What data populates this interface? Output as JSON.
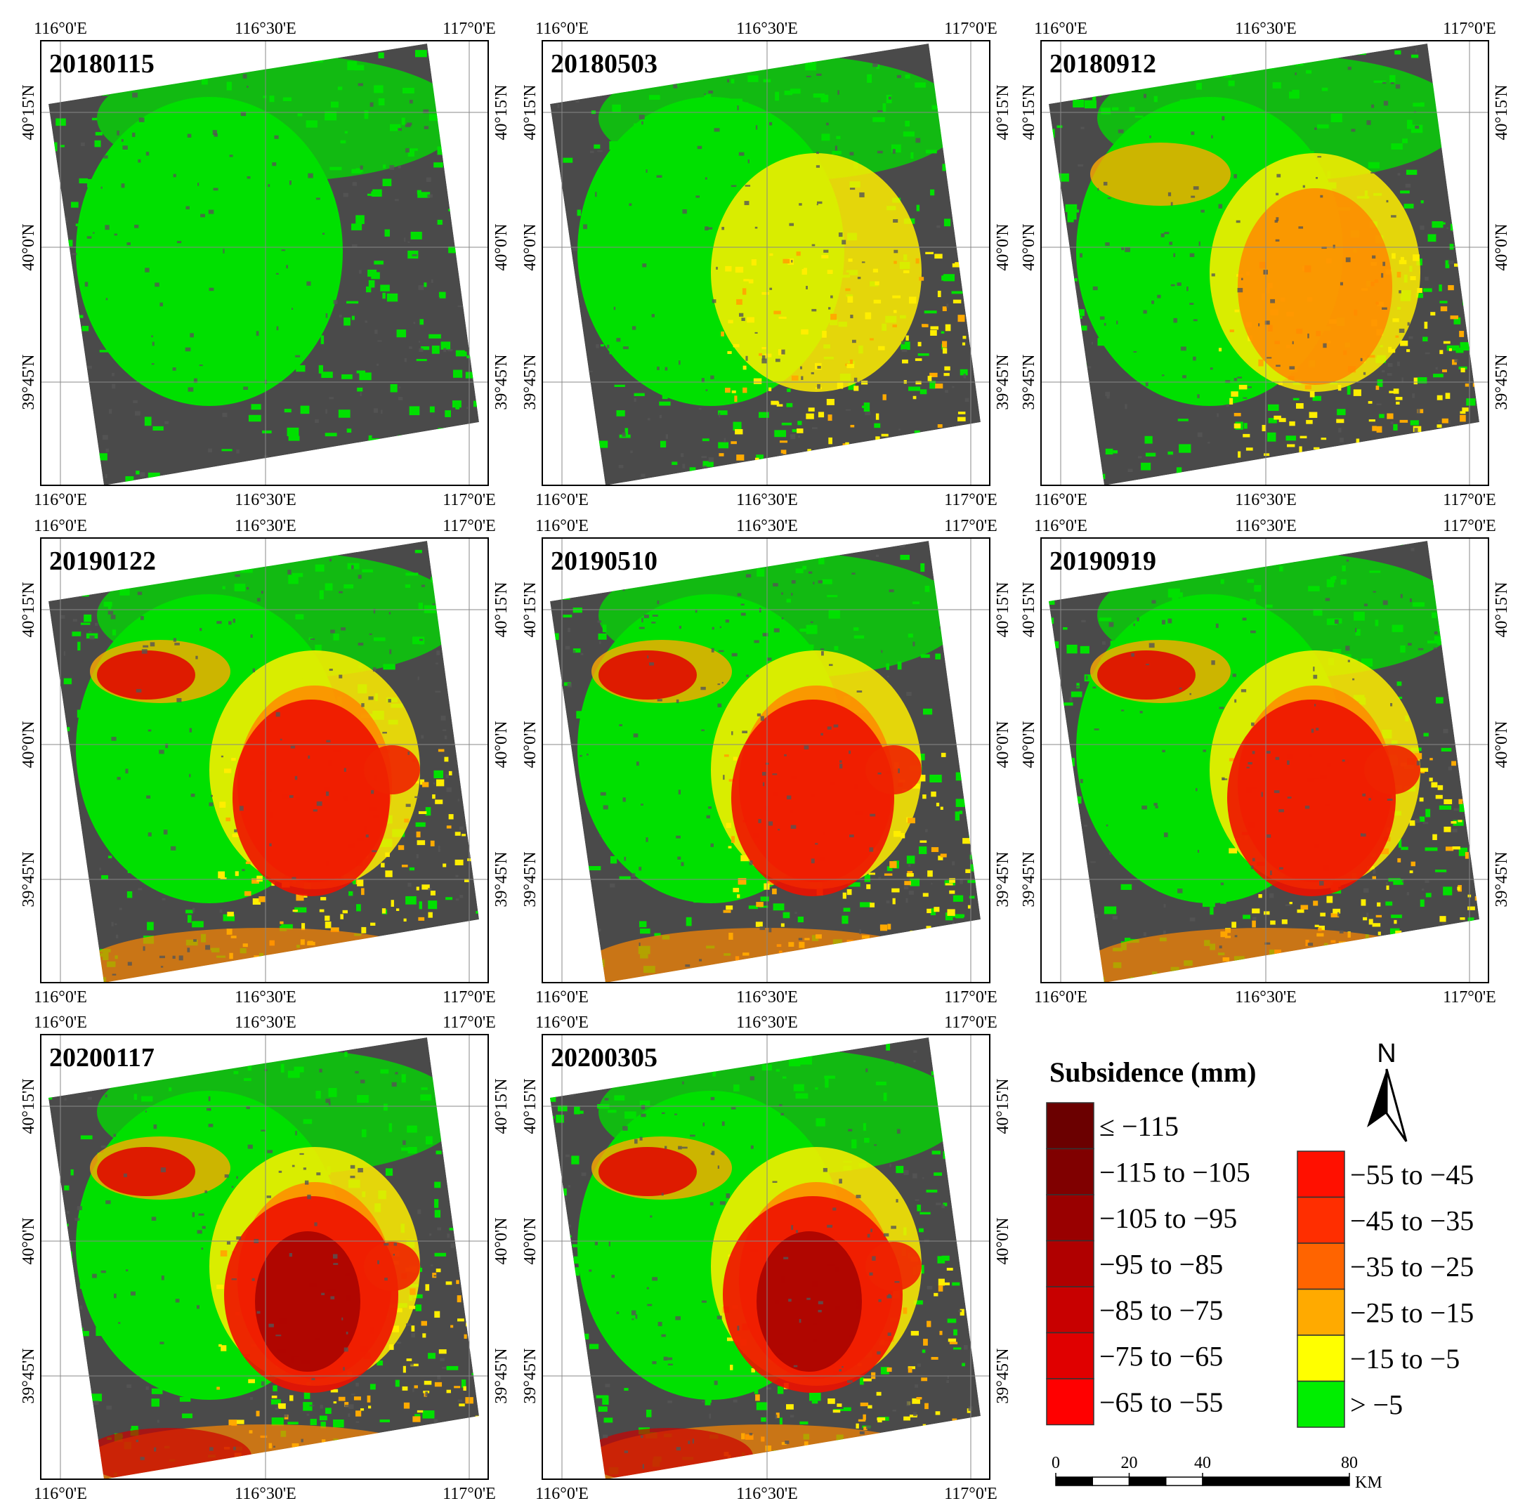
{
  "panels": [
    {
      "date": "20180115"
    },
    {
      "date": "20180503"
    },
    {
      "date": "20180912"
    },
    {
      "date": "20190122"
    },
    {
      "date": "20190510"
    },
    {
      "date": "20190919"
    },
    {
      "date": "20200117"
    },
    {
      "date": "20200305"
    }
  ],
  "lon_labels": [
    "116°0'E",
    "116°30'E",
    "117°0'E"
  ],
  "lat_labels": [
    "40°15'N",
    "40°0'N",
    "39°45'N"
  ],
  "legend": {
    "title": "Subsidence (mm)",
    "classes": [
      {
        "label": "≤ −115",
        "color": "#6b0000"
      },
      {
        "label": "−115 to −105",
        "color": "#800000"
      },
      {
        "label": "−105 to −95",
        "color": "#990000"
      },
      {
        "label": "−95 to −85",
        "color": "#b00000"
      },
      {
        "label": "−85 to −75",
        "color": "#c80000"
      },
      {
        "label": "−75 to −65",
        "color": "#e00000"
      },
      {
        "label": "−65 to −55",
        "color": "#ff0000"
      },
      {
        "label": "−55 to −45",
        "color": "#ff1000"
      },
      {
        "label": "−45 to −35",
        "color": "#ff2e00"
      },
      {
        "label": "−35 to −25",
        "color": "#ff6400"
      },
      {
        "label": "−25 to −15",
        "color": "#ffaa00"
      },
      {
        "label": "−15 to −5",
        "color": "#ffff00"
      },
      {
        "label": "> −5",
        "color": "#00ee00"
      }
    ]
  },
  "north": "N",
  "scale_bar": {
    "ticks": [
      0,
      20,
      40,
      80
    ],
    "unit": "KM"
  }
}
